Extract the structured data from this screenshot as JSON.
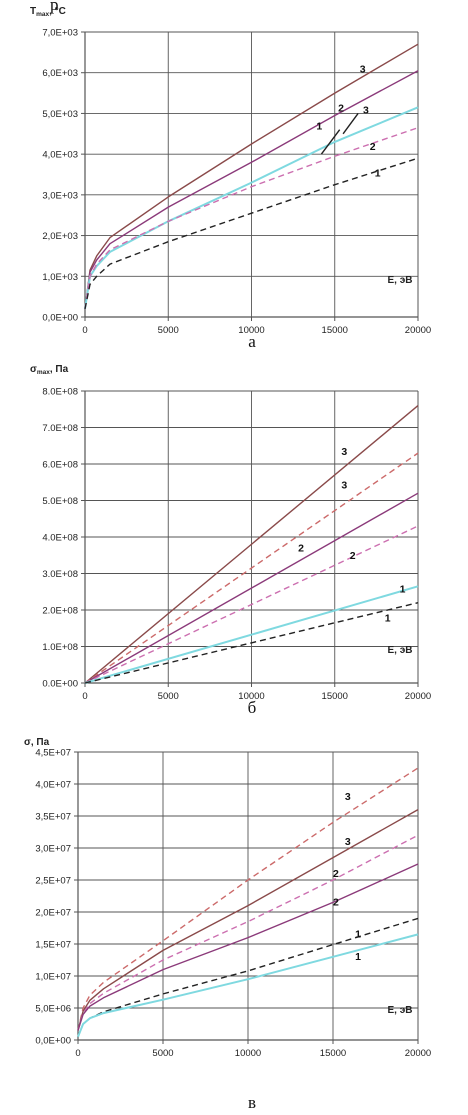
{
  "colors": {
    "c1": "#7fd9e0",
    "c1d": "#222222",
    "c2": "#8b3a7a",
    "c2d": "#cc6fb0",
    "c3": "#8a4a4a",
    "c3d": "#cc6a6a",
    "grid": "#555555",
    "axis": "#555555",
    "pre": "#7fd9e0"
  },
  "chart_data": [
    {
      "type": "line",
      "title": "",
      "ylabel": "T_max, °C",
      "xlabel": "E, эВ",
      "caption": "а",
      "xlim": [
        0,
        20000
      ],
      "ylim": [
        0,
        7000
      ],
      "xticks": [
        0,
        5000,
        10000,
        15000,
        20000
      ],
      "yticks": [
        0,
        1000,
        2000,
        3000,
        4000,
        5000,
        6000,
        7000
      ],
      "yticklabels": [
        "0,0E+00",
        "1,0E+03",
        "2,0E+03",
        "3,0E+03",
        "4,0E+03",
        "5,0E+03",
        "6,0E+03",
        "7,0E+03"
      ],
      "grid": true,
      "series": [
        {
          "name": "3",
          "style": "solid",
          "color": "c3",
          "x": [
            0,
            300,
            700,
            1500,
            5000,
            10000,
            15000,
            20000
          ],
          "y": [
            200,
            1150,
            1500,
            1950,
            2950,
            4250,
            5500,
            6700
          ]
        },
        {
          "name": "2",
          "style": "solid",
          "color": "c2",
          "x": [
            0,
            300,
            700,
            1500,
            5000,
            10000,
            15000,
            20000
          ],
          "y": [
            200,
            1100,
            1400,
            1800,
            2700,
            3800,
            4950,
            6050
          ]
        },
        {
          "name": "1",
          "style": "solid",
          "color": "c1",
          "x": [
            0,
            300,
            700,
            1500,
            5000,
            10000,
            15000,
            20000
          ],
          "y": [
            200,
            1000,
            1250,
            1600,
            2350,
            3300,
            4300,
            5150
          ]
        },
        {
          "name": "2",
          "style": "dashed",
          "color": "c2d",
          "x": [
            0,
            300,
            700,
            1500,
            5000,
            10000,
            15000,
            20000
          ],
          "y": [
            200,
            1000,
            1300,
            1650,
            2350,
            3200,
            3950,
            4650
          ]
        },
        {
          "name": "1",
          "style": "dashed",
          "color": "c1d",
          "x": [
            0,
            300,
            700,
            1500,
            5000,
            10000,
            15000,
            20000
          ],
          "y": [
            200,
            800,
            1000,
            1300,
            1850,
            2550,
            3250,
            3900
          ]
        },
        {
          "name": "1",
          "style": "solid",
          "color": "c1d",
          "x": [
            14200,
            15300
          ],
          "y": [
            4000,
            4600
          ]
        },
        {
          "name": "3",
          "style": "solid",
          "color": "c1d",
          "x": [
            15500,
            16400
          ],
          "y": [
            4500,
            5000
          ]
        }
      ],
      "labels": [
        {
          "text": "3",
          "x": 16500,
          "y": 6000
        },
        {
          "text": "2",
          "x": 15200,
          "y": 5050
        },
        {
          "text": "1",
          "x": 13900,
          "y": 4600
        },
        {
          "text": "3",
          "x": 16700,
          "y": 5000
        },
        {
          "text": "2",
          "x": 17100,
          "y": 4100
        },
        {
          "text": "1",
          "x": 17400,
          "y": 3450
        }
      ]
    },
    {
      "type": "line",
      "title": "",
      "ylabel": "σ_max, Па",
      "xlabel": "E, эВ",
      "caption": "б",
      "xlim": [
        0,
        20000
      ],
      "ylim": [
        0,
        800000000
      ],
      "xticks": [
        0,
        5000,
        10000,
        15000,
        20000
      ],
      "yticks": [
        0,
        100000000,
        200000000,
        300000000,
        400000000,
        500000000,
        600000000,
        700000000,
        800000000
      ],
      "yticklabels": [
        "0.0E+00",
        "1.0E+08",
        "2.0E+08",
        "3.0E+08",
        "4.0E+08",
        "5.0E+08",
        "6.0E+08",
        "7.0E+08",
        "8.0E+08"
      ],
      "grid": true,
      "series": [
        {
          "name": "3",
          "style": "solid",
          "color": "c3",
          "x": [
            0,
            20000
          ],
          "y": [
            0,
            760000000
          ]
        },
        {
          "name": "3",
          "style": "dashed",
          "color": "c3d",
          "x": [
            0,
            20000
          ],
          "y": [
            0,
            630000000
          ]
        },
        {
          "name": "2",
          "style": "solid",
          "color": "c2",
          "x": [
            0,
            20000
          ],
          "y": [
            0,
            520000000
          ]
        },
        {
          "name": "2",
          "style": "dashed",
          "color": "c2d",
          "x": [
            0,
            20000
          ],
          "y": [
            0,
            430000000
          ]
        },
        {
          "name": "1",
          "style": "solid",
          "color": "c1",
          "x": [
            0,
            20000
          ],
          "y": [
            0,
            265000000
          ]
        },
        {
          "name": "1",
          "style": "dashed",
          "color": "c1d",
          "x": [
            0,
            20000
          ],
          "y": [
            0,
            220000000
          ]
        }
      ],
      "labels": [
        {
          "text": "3",
          "x": 15400,
          "y": 625000000
        },
        {
          "text": "3",
          "x": 15400,
          "y": 533000000
        },
        {
          "text": "2",
          "x": 12800,
          "y": 360000000
        },
        {
          "text": "2",
          "x": 15900,
          "y": 340000000
        },
        {
          "text": "1",
          "x": 18900,
          "y": 248000000
        },
        {
          "text": "1",
          "x": 18000,
          "y": 168000000
        }
      ]
    },
    {
      "type": "line",
      "title": "",
      "ylabel": "σ, Па",
      "xlabel": "E, эВ",
      "caption": "в",
      "xlim": [
        0,
        20000
      ],
      "ylim": [
        0,
        45000000
      ],
      "xticks": [
        0,
        5000,
        10000,
        15000,
        20000
      ],
      "yticks": [
        0,
        5000000,
        10000000,
        15000000,
        20000000,
        25000000,
        30000000,
        35000000,
        40000000,
        45000000
      ],
      "yticklabels": [
        "0,0E+00",
        "5,0E+06",
        "1,0E+07",
        "1,5E+07",
        "2,0E+07",
        "2,5E+07",
        "3,0E+07",
        "3,5E+07",
        "4,0E+07",
        "4,5E+07"
      ],
      "grid": true,
      "series": [
        {
          "name": "3",
          "style": "dashed",
          "color": "c3d",
          "x": [
            0,
            300,
            700,
            1500,
            5000,
            10000,
            15000,
            20000
          ],
          "y": [
            1500000,
            5000000,
            7000000,
            9000000,
            15500000,
            25000000,
            34000000,
            42500000
          ]
        },
        {
          "name": "3",
          "style": "solid",
          "color": "c3",
          "x": [
            0,
            300,
            700,
            1500,
            5000,
            10000,
            15000,
            20000
          ],
          "y": [
            1500000,
            4500000,
            6200000,
            8000000,
            14000000,
            21000000,
            28500000,
            36000000
          ]
        },
        {
          "name": "2",
          "style": "dashed",
          "color": "c2d",
          "x": [
            0,
            300,
            700,
            1500,
            5000,
            10000,
            15000,
            20000
          ],
          "y": [
            1500000,
            4200000,
            5700000,
            7300000,
            12500000,
            18500000,
            25000000,
            32000000
          ]
        },
        {
          "name": "2",
          "style": "solid",
          "color": "c2",
          "x": [
            0,
            300,
            700,
            1500,
            5000,
            10000,
            15000,
            20000
          ],
          "y": [
            1500000,
            4000000,
            5300000,
            6600000,
            11000000,
            16000000,
            21500000,
            27500000
          ]
        },
        {
          "name": "1",
          "style": "dashed",
          "color": "c1d",
          "x": [
            0,
            300,
            700,
            1500,
            5000,
            10000,
            15000,
            20000
          ],
          "y": [
            500000,
            2500000,
            3400000,
            4400000,
            7200000,
            10800000,
            14900000,
            19000000
          ]
        },
        {
          "name": "1",
          "style": "solid",
          "color": "c1",
          "x": [
            0,
            300,
            700,
            1500,
            5000,
            10000,
            15000,
            20000
          ],
          "y": [
            500000,
            2500000,
            3400000,
            4200000,
            6300000,
            9500000,
            13000000,
            16500000
          ]
        }
      ],
      "labels": [
        {
          "text": "3",
          "x": 15700,
          "y": 37500000
        },
        {
          "text": "3",
          "x": 15700,
          "y": 30500000
        },
        {
          "text": "2",
          "x": 15000,
          "y": 25500000
        },
        {
          "text": "2",
          "x": 15000,
          "y": 21000000
        },
        {
          "text": "1",
          "x": 16300,
          "y": 16000000
        },
        {
          "text": "1",
          "x": 16300,
          "y": 12500000
        }
      ]
    }
  ],
  "top_fragment": "р"
}
